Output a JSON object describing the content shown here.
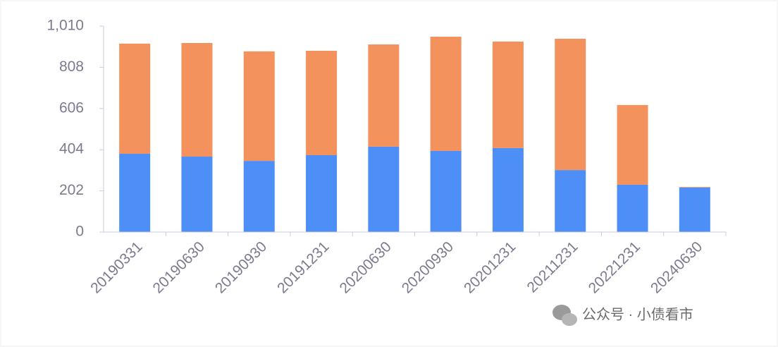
{
  "chart_data": {
    "type": "stacked_bar",
    "categories": [
      "20190331",
      "20190630",
      "20190930",
      "20191231",
      "20200630",
      "20200930",
      "20201231",
      "20211231",
      "20221231",
      "20240630"
    ],
    "series": [
      {
        "color": "#4d8ff7",
        "values": [
          384,
          370,
          349,
          377,
          419,
          398,
          412,
          304,
          232,
          218
        ]
      },
      {
        "color": "#f4925d",
        "values": [
          540,
          557,
          537,
          512,
          501,
          560,
          522,
          644,
          391,
          3
        ]
      }
    ],
    "ylim": [
      0,
      1010
    ],
    "yticks": [
      0,
      202,
      404,
      606,
      808,
      {
        "value": 1010,
        "label": "1,010"
      }
    ],
    "grid": false,
    "watermark": "公众号 · 小债看市"
  }
}
